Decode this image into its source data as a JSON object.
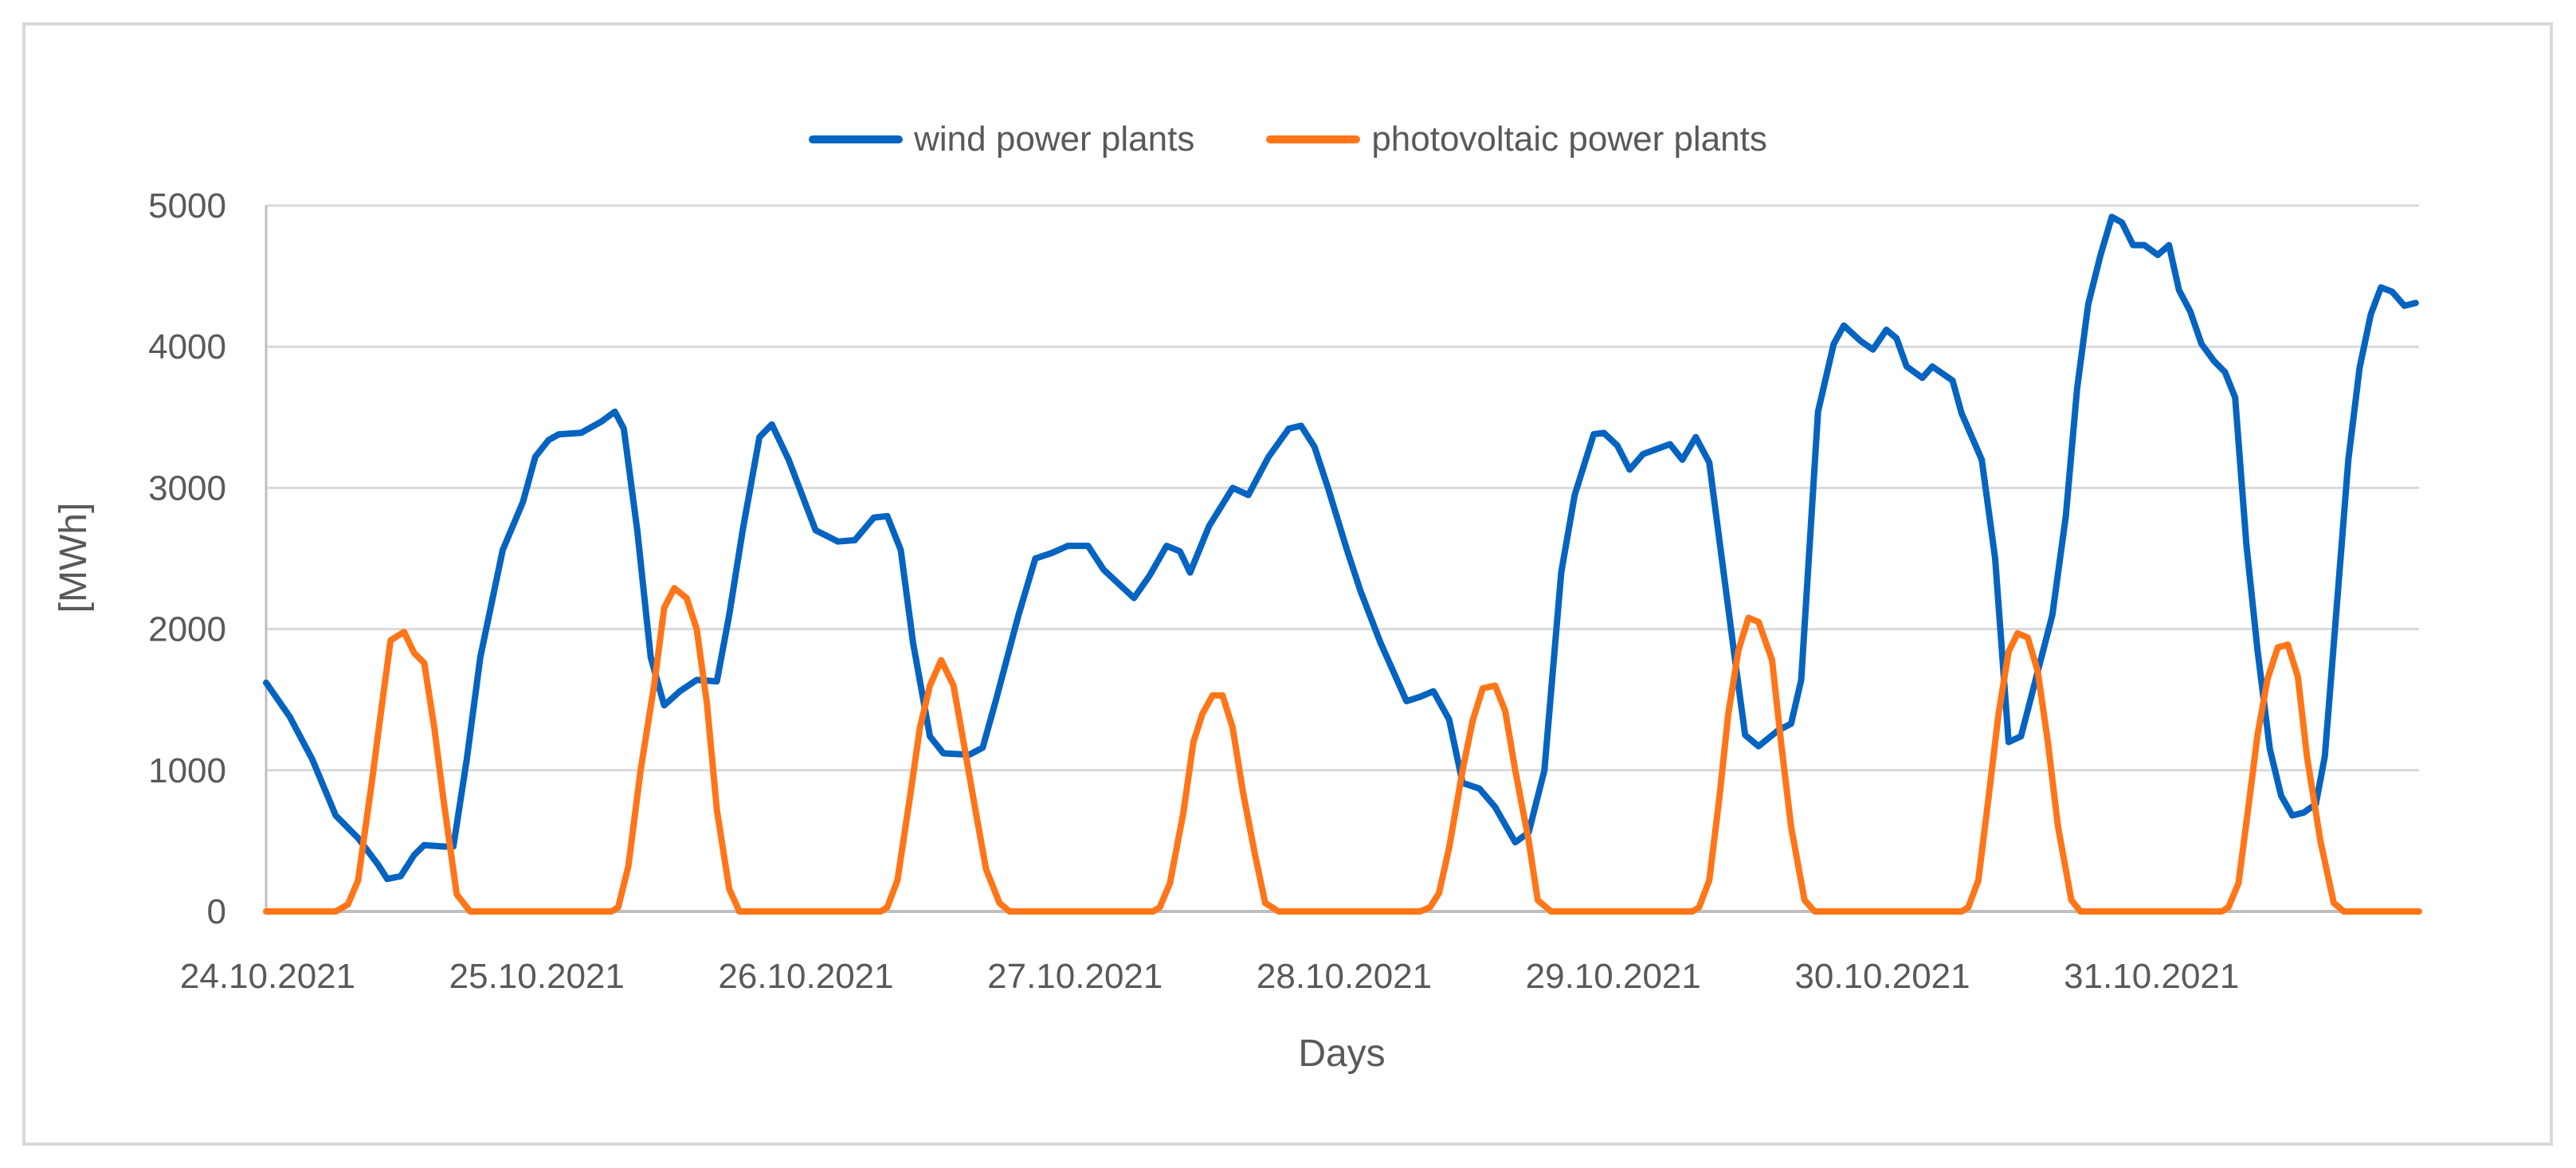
{
  "chart_data": {
    "type": "line",
    "title": "",
    "xlabel": "Days",
    "ylabel": "[MWh]",
    "ylim": [
      0,
      5000
    ],
    "yticks": [
      0,
      1000,
      2000,
      3000,
      4000,
      5000
    ],
    "xlim_hours": [
      0,
      192
    ],
    "grid": true,
    "legend_position": "top",
    "x_tick_labels": [
      {
        "hour": 0,
        "label": "24.10.2021"
      },
      {
        "hour": 24,
        "label": "25.10.2021"
      },
      {
        "hour": 48,
        "label": "26.10.2021"
      },
      {
        "hour": 72,
        "label": "27.10.2021"
      },
      {
        "hour": 96,
        "label": "28.10.2021"
      },
      {
        "hour": 120,
        "label": "29.10.2021"
      },
      {
        "hour": 144,
        "label": "30.10.2021"
      },
      {
        "hour": 168,
        "label": "31.10.2021"
      }
    ],
    "series": [
      {
        "name": "wind power plants",
        "color": "#0563C1",
        "points": [
          [
            0,
            1620
          ],
          [
            2.1,
            1380
          ],
          [
            4.1,
            1080
          ],
          [
            6.2,
            680
          ],
          [
            8.2,
            520
          ],
          [
            10.0,
            330
          ],
          [
            10.8,
            230
          ],
          [
            12.0,
            250
          ],
          [
            13.2,
            400
          ],
          [
            14.1,
            470
          ],
          [
            15.8,
            460
          ],
          [
            16.7,
            460
          ],
          [
            17.9,
            1080
          ],
          [
            19.1,
            1800
          ],
          [
            21.1,
            2560
          ],
          [
            22.9,
            2900
          ],
          [
            24.0,
            3220
          ],
          [
            25.2,
            3340
          ],
          [
            26.1,
            3380
          ],
          [
            28.1,
            3390
          ],
          [
            29.9,
            3470
          ],
          [
            31.1,
            3540
          ],
          [
            31.9,
            3420
          ],
          [
            33.1,
            2700
          ],
          [
            34.3,
            1800
          ],
          [
            35.5,
            1460
          ],
          [
            36.9,
            1560
          ],
          [
            38.4,
            1640
          ],
          [
            40.2,
            1630
          ],
          [
            41.3,
            2100
          ],
          [
            42.5,
            2700
          ],
          [
            44.0,
            3360
          ],
          [
            45.1,
            3450
          ],
          [
            46.6,
            3200
          ],
          [
            49.0,
            2700
          ],
          [
            51.0,
            2620
          ],
          [
            52.5,
            2630
          ],
          [
            54.2,
            2790
          ],
          [
            55.4,
            2800
          ],
          [
            56.6,
            2560
          ],
          [
            57.7,
            1900
          ],
          [
            59.2,
            1240
          ],
          [
            60.4,
            1120
          ],
          [
            62.7,
            1110
          ],
          [
            63.9,
            1160
          ],
          [
            65.1,
            1500
          ],
          [
            67.1,
            2100
          ],
          [
            68.6,
            2500
          ],
          [
            70.1,
            2540
          ],
          [
            71.5,
            2590
          ],
          [
            73.3,
            2590
          ],
          [
            74.7,
            2420
          ],
          [
            77.4,
            2220
          ],
          [
            78.8,
            2380
          ],
          [
            80.3,
            2590
          ],
          [
            81.5,
            2550
          ],
          [
            82.4,
            2400
          ],
          [
            84.1,
            2730
          ],
          [
            86.2,
            3000
          ],
          [
            87.6,
            2950
          ],
          [
            89.4,
            3220
          ],
          [
            91.2,
            3420
          ],
          [
            92.3,
            3440
          ],
          [
            93.5,
            3290
          ],
          [
            94.7,
            3000
          ],
          [
            96.4,
            2560
          ],
          [
            97.6,
            2270
          ],
          [
            99.4,
            1900
          ],
          [
            101.7,
            1490
          ],
          [
            102.9,
            1520
          ],
          [
            104.1,
            1560
          ],
          [
            105.5,
            1360
          ],
          [
            106.7,
            910
          ],
          [
            108.2,
            870
          ],
          [
            109.6,
            740
          ],
          [
            111.4,
            490
          ],
          [
            112.6,
            560
          ],
          [
            114.0,
            1000
          ],
          [
            115.5,
            2400
          ],
          [
            116.7,
            2950
          ],
          [
            118.4,
            3380
          ],
          [
            119.3,
            3390
          ],
          [
            120.5,
            3300
          ],
          [
            121.6,
            3130
          ],
          [
            122.8,
            3240
          ],
          [
            125.2,
            3310
          ],
          [
            126.3,
            3200
          ],
          [
            127.5,
            3360
          ],
          [
            128.7,
            3180
          ],
          [
            131.0,
            1780
          ],
          [
            131.9,
            1250
          ],
          [
            133.1,
            1170
          ],
          [
            134.8,
            1280
          ],
          [
            136.0,
            1330
          ],
          [
            136.9,
            1640
          ],
          [
            138.4,
            3540
          ],
          [
            139.8,
            4020
          ],
          [
            140.7,
            4150
          ],
          [
            142.2,
            4040
          ],
          [
            143.3,
            3980
          ],
          [
            144.5,
            4120
          ],
          [
            145.4,
            4060
          ],
          [
            146.3,
            3860
          ],
          [
            147.7,
            3780
          ],
          [
            148.6,
            3860
          ],
          [
            150.4,
            3760
          ],
          [
            151.2,
            3530
          ],
          [
            153.0,
            3200
          ],
          [
            154.2,
            2500
          ],
          [
            155.4,
            1200
          ],
          [
            156.5,
            1240
          ],
          [
            158.0,
            1700
          ],
          [
            159.3,
            2100
          ],
          [
            160.5,
            2800
          ],
          [
            161.5,
            3700
          ],
          [
            162.5,
            4300
          ],
          [
            163.6,
            4650
          ],
          [
            164.6,
            4920
          ],
          [
            165.5,
            4880
          ],
          [
            166.5,
            4720
          ],
          [
            167.5,
            4720
          ],
          [
            168.7,
            4650
          ],
          [
            169.7,
            4720
          ],
          [
            170.6,
            4400
          ],
          [
            171.6,
            4250
          ],
          [
            172.6,
            4020
          ],
          [
            173.7,
            3900
          ],
          [
            174.7,
            3820
          ],
          [
            175.6,
            3640
          ],
          [
            176.6,
            2600
          ],
          [
            177.6,
            1850
          ],
          [
            178.7,
            1150
          ],
          [
            179.7,
            820
          ],
          [
            180.7,
            680
          ],
          [
            181.7,
            700
          ],
          [
            182.8,
            760
          ],
          [
            183.6,
            1100
          ],
          [
            184.7,
            2200
          ],
          [
            185.7,
            3200
          ],
          [
            186.7,
            3850
          ],
          [
            187.7,
            4230
          ],
          [
            188.6,
            4420
          ],
          [
            189.6,
            4390
          ],
          [
            190.7,
            4290
          ],
          [
            191.7,
            4310
          ]
        ]
      },
      {
        "name": "photovoltaic power plants",
        "color": "#FF7518",
        "points": [
          [
            0,
            0
          ],
          [
            6.2,
            0
          ],
          [
            7.3,
            50
          ],
          [
            8.2,
            220
          ],
          [
            9.4,
            900
          ],
          [
            10.3,
            1450
          ],
          [
            11.1,
            1920
          ],
          [
            12.3,
            1980
          ],
          [
            13.2,
            1830
          ],
          [
            14.1,
            1760
          ],
          [
            15.0,
            1300
          ],
          [
            15.8,
            800
          ],
          [
            17.0,
            120
          ],
          [
            18.2,
            0
          ],
          [
            30.8,
            0
          ],
          [
            31.4,
            30
          ],
          [
            32.3,
            320
          ],
          [
            33.4,
            1000
          ],
          [
            34.6,
            1600
          ],
          [
            35.5,
            2150
          ],
          [
            36.4,
            2290
          ],
          [
            37.5,
            2220
          ],
          [
            38.4,
            2000
          ],
          [
            39.3,
            1480
          ],
          [
            40.2,
            720
          ],
          [
            41.3,
            160
          ],
          [
            42.2,
            0
          ],
          [
            54.8,
            0
          ],
          [
            55.4,
            30
          ],
          [
            56.3,
            220
          ],
          [
            57.4,
            800
          ],
          [
            58.3,
            1300
          ],
          [
            59.2,
            1600
          ],
          [
            60.2,
            1780
          ],
          [
            61.3,
            1600
          ],
          [
            62.2,
            1200
          ],
          [
            63.3,
            700
          ],
          [
            64.2,
            300
          ],
          [
            65.4,
            60
          ],
          [
            66.3,
            0
          ],
          [
            79.1,
            0
          ],
          [
            79.7,
            30
          ],
          [
            80.6,
            200
          ],
          [
            81.8,
            700
          ],
          [
            82.7,
            1200
          ],
          [
            83.5,
            1400
          ],
          [
            84.4,
            1530
          ],
          [
            85.3,
            1530
          ],
          [
            86.2,
            1300
          ],
          [
            87.1,
            850
          ],
          [
            88.2,
            400
          ],
          [
            89.1,
            60
          ],
          [
            90.3,
            0
          ],
          [
            102.9,
            0
          ],
          [
            103.8,
            30
          ],
          [
            104.6,
            130
          ],
          [
            105.5,
            450
          ],
          [
            106.7,
            1000
          ],
          [
            107.6,
            1350
          ],
          [
            108.5,
            1580
          ],
          [
            109.6,
            1600
          ],
          [
            110.5,
            1420
          ],
          [
            111.4,
            1000
          ],
          [
            112.6,
            500
          ],
          [
            113.4,
            80
          ],
          [
            114.6,
            0
          ],
          [
            127.2,
            0
          ],
          [
            127.8,
            30
          ],
          [
            128.7,
            220
          ],
          [
            129.6,
            800
          ],
          [
            130.4,
            1400
          ],
          [
            131.3,
            1850
          ],
          [
            132.2,
            2080
          ],
          [
            133.1,
            2050
          ],
          [
            134.3,
            1780
          ],
          [
            135.1,
            1200
          ],
          [
            136.0,
            600
          ],
          [
            137.2,
            80
          ],
          [
            138.1,
            0
          ],
          [
            151.2,
            0
          ],
          [
            151.8,
            30
          ],
          [
            152.7,
            220
          ],
          [
            153.6,
            800
          ],
          [
            154.5,
            1400
          ],
          [
            155.4,
            1840
          ],
          [
            156.2,
            1970
          ],
          [
            157.1,
            1940
          ],
          [
            158.0,
            1700
          ],
          [
            158.9,
            1200
          ],
          [
            159.8,
            600
          ],
          [
            161.0,
            80
          ],
          [
            161.8,
            0
          ],
          [
            174.4,
            0
          ],
          [
            175.0,
            30
          ],
          [
            175.9,
            200
          ],
          [
            176.8,
            750
          ],
          [
            177.6,
            1250
          ],
          [
            178.5,
            1650
          ],
          [
            179.4,
            1870
          ],
          [
            180.3,
            1890
          ],
          [
            181.2,
            1660
          ],
          [
            182.0,
            1100
          ],
          [
            183.2,
            500
          ],
          [
            184.4,
            60
          ],
          [
            185.3,
            0
          ],
          [
            192,
            0
          ]
        ]
      }
    ]
  },
  "legend": {
    "items": [
      {
        "label": "wind power plants",
        "color": "#0563C1"
      },
      {
        "label": "photovoltaic power plants",
        "color": "#FF7518"
      }
    ]
  },
  "axes": {
    "y_title": "[MWh]",
    "x_title": "Days"
  }
}
